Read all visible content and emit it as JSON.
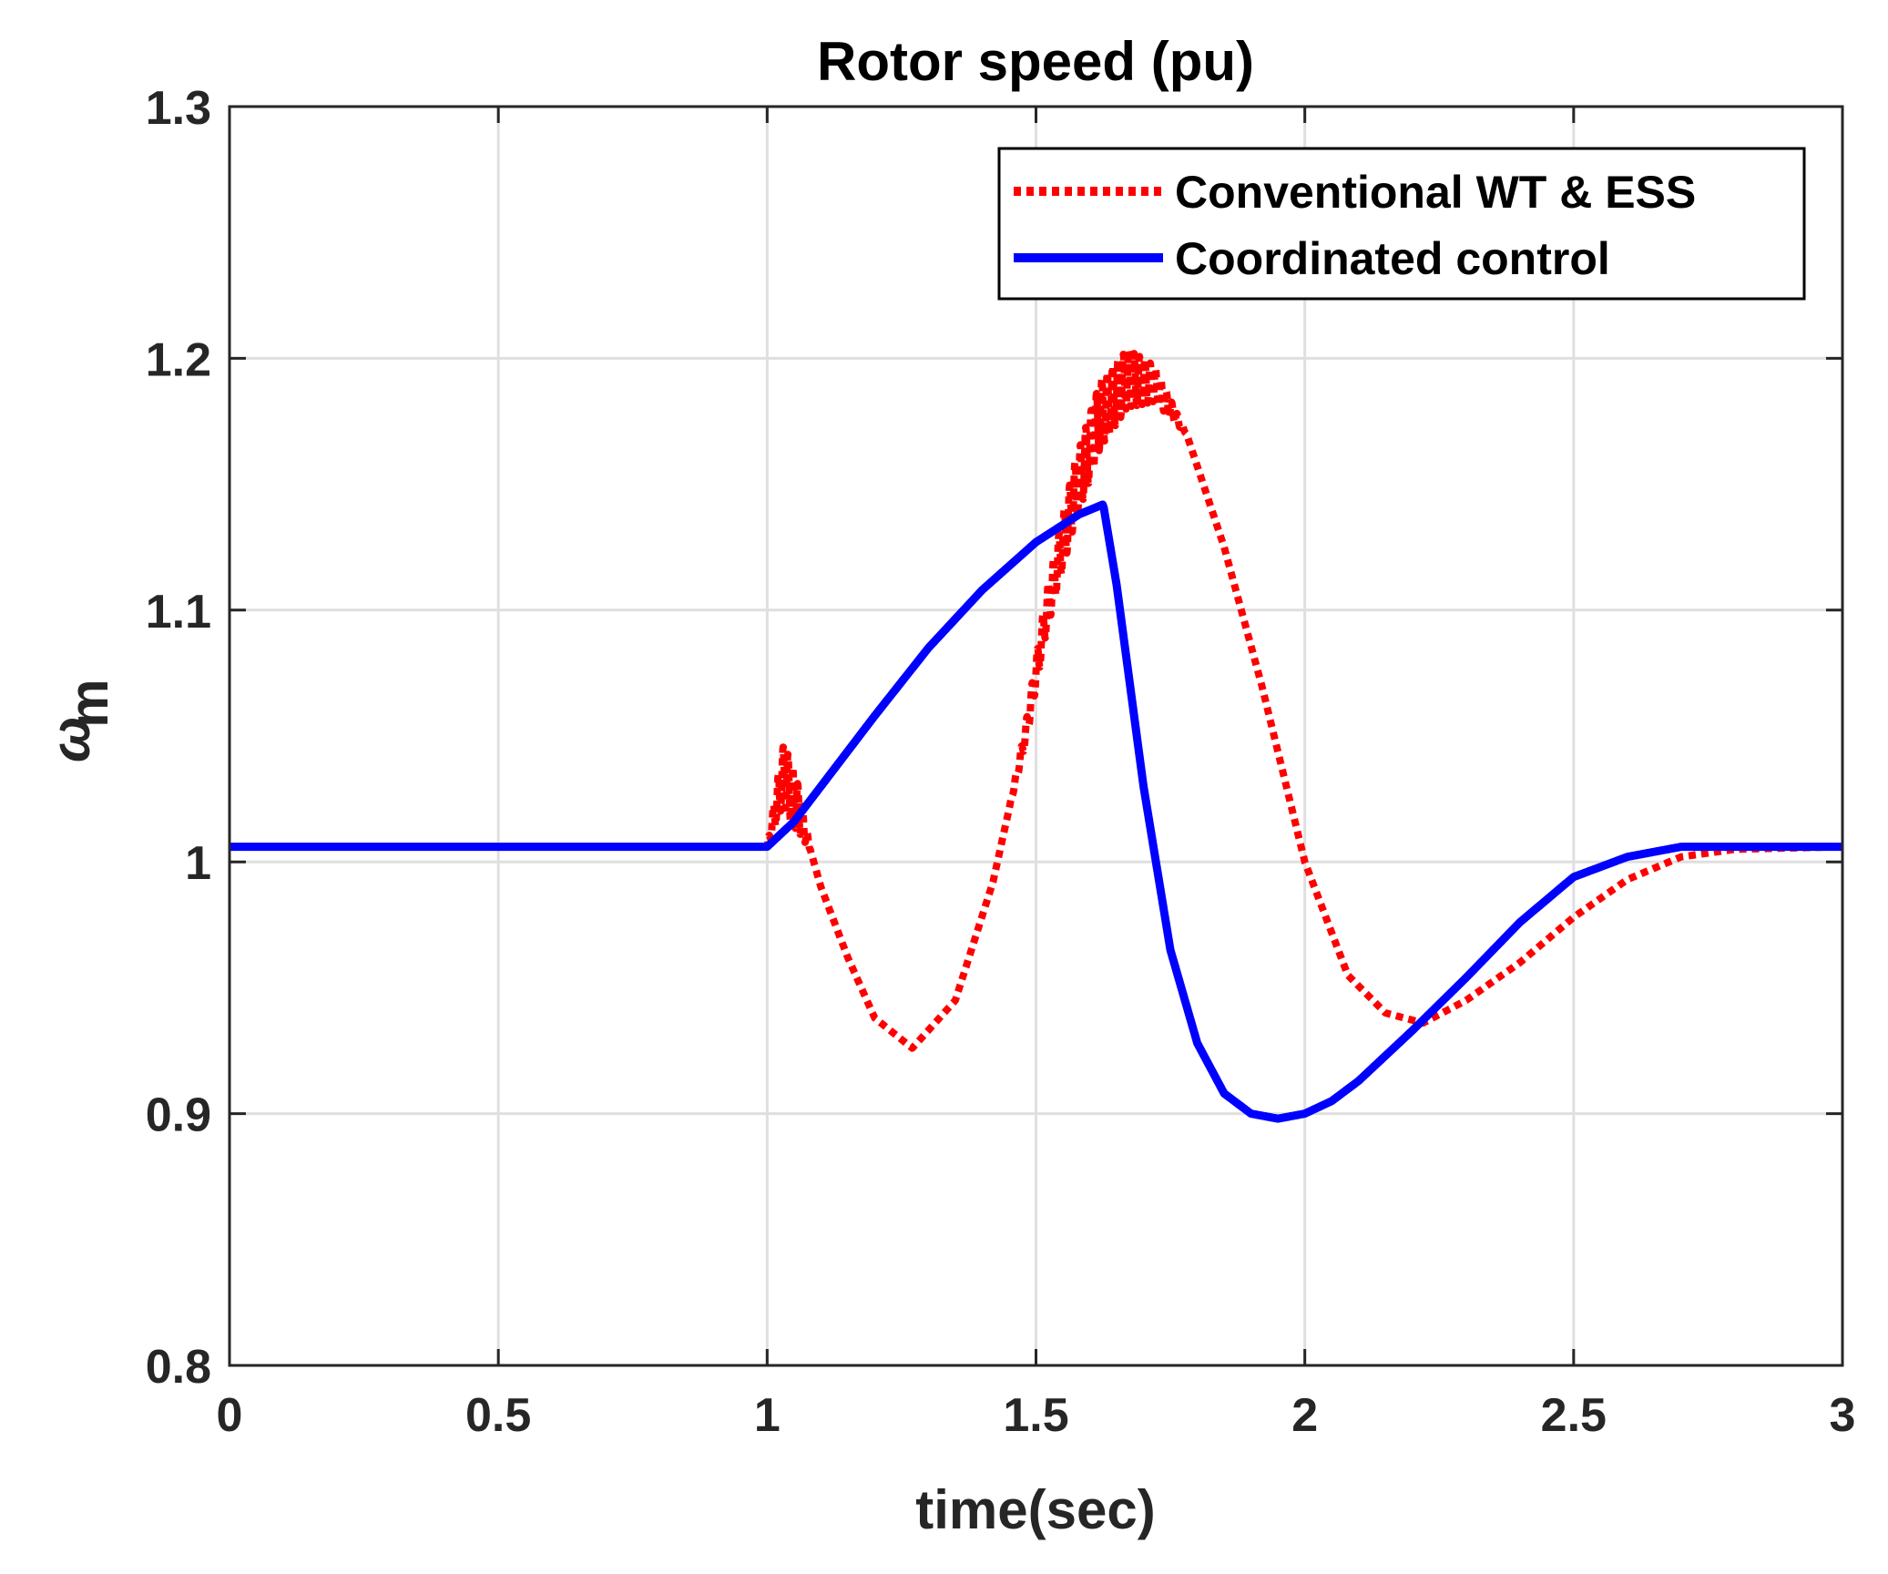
{
  "chart_data": {
    "type": "line",
    "title": "Rotor speed (pu)",
    "xlabel": "time(sec)",
    "ylabel": "ω",
    "ylabel_subscript": "m",
    "xlim": [
      0,
      3
    ],
    "ylim": [
      0.8,
      1.3
    ],
    "xticks": [
      0,
      0.5,
      1,
      1.5,
      2,
      2.5,
      3
    ],
    "xtick_labels": [
      "0",
      "0.5",
      "1",
      "1.5",
      "2",
      "2.5",
      "3"
    ],
    "yticks": [
      0.8,
      0.9,
      1.0,
      1.1,
      1.2,
      1.3
    ],
    "ytick_labels": [
      "0.8",
      "0.9",
      "1",
      "1.1",
      "1.2",
      "1.3"
    ],
    "grid": true,
    "legend_position": "top-right",
    "series": [
      {
        "name": "Conventional WT & ESS",
        "color": "#ff0000",
        "style": "dotted",
        "oscillation": [
          {
            "t_start": 1.0,
            "t_end": 1.08,
            "amplitude": 0.012,
            "frequency_hz": 110
          },
          {
            "t_start": 1.45,
            "t_end": 1.78,
            "amplitude": 0.013,
            "frequency_hz": 100
          }
        ],
        "x": [
          0,
          0.5,
          1.0,
          1.03,
          1.06,
          1.1,
          1.15,
          1.2,
          1.27,
          1.35,
          1.42,
          1.48,
          1.52,
          1.57,
          1.62,
          1.67,
          1.72,
          1.78,
          1.85,
          1.92,
          2.0,
          2.08,
          2.15,
          2.22,
          2.3,
          2.4,
          2.5,
          2.6,
          2.7,
          2.8,
          3.0
        ],
        "y": [
          1.006,
          1.006,
          1.006,
          1.035,
          1.02,
          0.99,
          0.962,
          0.938,
          0.926,
          0.945,
          0.992,
          1.05,
          1.1,
          1.145,
          1.178,
          1.192,
          1.19,
          1.17,
          1.125,
          1.07,
          1.0,
          0.955,
          0.94,
          0.936,
          0.945,
          0.96,
          0.978,
          0.993,
          1.002,
          1.005,
          1.006
        ]
      },
      {
        "name": "Coordinated control",
        "color": "#0000ff",
        "style": "solid",
        "x": [
          0,
          0.5,
          1.0,
          1.05,
          1.1,
          1.2,
          1.3,
          1.4,
          1.5,
          1.58,
          1.625,
          1.65,
          1.7,
          1.75,
          1.8,
          1.85,
          1.9,
          1.95,
          2.0,
          2.05,
          2.1,
          2.2,
          2.3,
          2.4,
          2.5,
          2.6,
          2.7,
          2.8,
          3.0
        ],
        "y": [
          1.006,
          1.006,
          1.006,
          1.016,
          1.03,
          1.058,
          1.085,
          1.108,
          1.127,
          1.138,
          1.142,
          1.11,
          1.03,
          0.965,
          0.928,
          0.908,
          0.9,
          0.898,
          0.9,
          0.905,
          0.913,
          0.933,
          0.954,
          0.976,
          0.994,
          1.002,
          1.006,
          1.006,
          1.006
        ]
      }
    ]
  }
}
